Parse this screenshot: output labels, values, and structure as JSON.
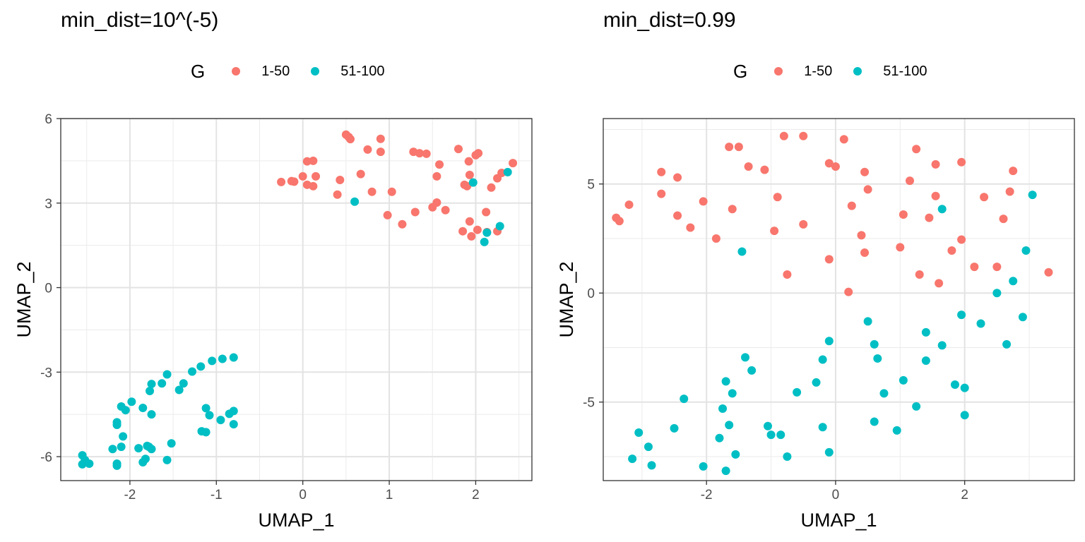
{
  "chart_data": [
    {
      "type": "scatter",
      "title": "min_dist=10^(-5)",
      "xlabel": "UMAP_1",
      "ylabel": "UMAP_2",
      "xlim": [
        -2.8,
        2.65
      ],
      "ylim": [
        -6.85,
        6.0
      ],
      "xticks": [
        -2,
        -1,
        0,
        1,
        2
      ],
      "yticks": [
        -6,
        -3,
        0,
        3,
        6
      ],
      "xtick_labels": [
        "-2",
        "-1",
        "0",
        "1",
        "2"
      ],
      "ytick_labels": [
        "-6",
        "-3",
        "0",
        "3",
        "6"
      ],
      "grid": true,
      "legend": {
        "title": "G",
        "position": "top"
      },
      "series": [
        {
          "name": "1-50",
          "color": "#F8766D",
          "points": [
            [
              -0.25,
              3.75
            ],
            [
              -0.13,
              3.78
            ],
            [
              -0.1,
              3.76
            ],
            [
              0.0,
              3.95
            ],
            [
              0.05,
              4.48
            ],
            [
              0.05,
              3.65
            ],
            [
              0.12,
              4.5
            ],
            [
              0.12,
              3.6
            ],
            [
              0.15,
              3.95
            ],
            [
              0.4,
              3.3
            ],
            [
              0.43,
              3.82
            ],
            [
              0.5,
              5.43
            ],
            [
              0.53,
              5.35
            ],
            [
              0.55,
              5.27
            ],
            [
              0.67,
              4.03
            ],
            [
              0.75,
              4.9
            ],
            [
              0.8,
              3.4
            ],
            [
              0.9,
              5.28
            ],
            [
              0.9,
              4.82
            ],
            [
              0.98,
              2.57
            ],
            [
              1.03,
              3.4
            ],
            [
              1.15,
              2.25
            ],
            [
              1.28,
              4.82
            ],
            [
              1.3,
              2.68
            ],
            [
              1.35,
              4.77
            ],
            [
              1.43,
              4.75
            ],
            [
              1.5,
              2.85
            ],
            [
              1.55,
              3.02
            ],
            [
              1.55,
              3.95
            ],
            [
              1.58,
              4.37
            ],
            [
              1.65,
              2.75
            ],
            [
              1.8,
              4.92
            ],
            [
              1.85,
              2.0
            ],
            [
              1.87,
              3.65
            ],
            [
              1.9,
              3.6
            ],
            [
              1.92,
              4.48
            ],
            [
              1.93,
              4.0
            ],
            [
              1.93,
              2.35
            ],
            [
              1.95,
              1.82
            ],
            [
              2.0,
              4.7
            ],
            [
              2.02,
              2.05
            ],
            [
              2.03,
              4.77
            ],
            [
              2.12,
              2.68
            ],
            [
              2.13,
              1.97
            ],
            [
              2.18,
              3.55
            ],
            [
              2.25,
              3.88
            ],
            [
              2.25,
              2.0
            ],
            [
              2.3,
              4.07
            ],
            [
              2.43,
              4.42
            ]
          ]
        },
        {
          "name": "51-100",
          "color": "#00BFC4",
          "points": [
            [
              0.6,
              3.05
            ],
            [
              1.97,
              3.73
            ],
            [
              2.1,
              1.62
            ],
            [
              2.13,
              1.95
            ],
            [
              2.28,
              2.18
            ],
            [
              2.37,
              4.1
            ],
            [
              -0.8,
              -2.48
            ],
            [
              -0.93,
              -2.53
            ],
            [
              -1.05,
              -2.6
            ],
            [
              -1.18,
              -2.8
            ],
            [
              -1.28,
              -2.98
            ],
            [
              -1.38,
              -3.4
            ],
            [
              -1.43,
              -3.63
            ],
            [
              -1.57,
              -3.08
            ],
            [
              -1.63,
              -3.4
            ],
            [
              -1.75,
              -3.42
            ],
            [
              -1.77,
              -3.67
            ],
            [
              -1.75,
              -4.5
            ],
            [
              -1.85,
              -4.27
            ],
            [
              -1.98,
              -4.05
            ],
            [
              -2.05,
              -4.35
            ],
            [
              -2.1,
              -4.22
            ],
            [
              -2.15,
              -4.78
            ],
            [
              -2.15,
              -4.87
            ],
            [
              -2.08,
              -5.28
            ],
            [
              -2.1,
              -5.65
            ],
            [
              -2.2,
              -5.73
            ],
            [
              -1.9,
              -5.7
            ],
            [
              -1.8,
              -5.62
            ],
            [
              -1.78,
              -5.65
            ],
            [
              -1.75,
              -5.73
            ],
            [
              -1.82,
              -6.08
            ],
            [
              -1.85,
              -6.2
            ],
            [
              -2.15,
              -6.25
            ],
            [
              -2.15,
              -6.32
            ],
            [
              -1.57,
              -6.12
            ],
            [
              -1.52,
              -5.53
            ],
            [
              -1.12,
              -4.28
            ],
            [
              -1.08,
              -4.53
            ],
            [
              -1.17,
              -5.1
            ],
            [
              -1.12,
              -5.13
            ],
            [
              -0.95,
              -4.7
            ],
            [
              -0.85,
              -4.48
            ],
            [
              -0.8,
              -4.38
            ],
            [
              -0.8,
              -4.85
            ],
            [
              -2.55,
              -5.95
            ],
            [
              -2.52,
              -6.12
            ],
            [
              -2.55,
              -6.27
            ],
            [
              -2.47,
              -6.25
            ]
          ]
        }
      ]
    },
    {
      "type": "scatter",
      "title": "min_dist=0.99",
      "xlabel": "UMAP_1",
      "ylabel": "UMAP_2",
      "xlim": [
        -3.6,
        3.7
      ],
      "ylim": [
        -8.6,
        8.0
      ],
      "xticks": [
        -2,
        0,
        2
      ],
      "yticks": [
        -5,
        0,
        5
      ],
      "xtick_labels": [
        "-2",
        "0",
        "2"
      ],
      "ytick_labels": [
        "-5",
        "0",
        "5"
      ],
      "grid": true,
      "legend": {
        "title": "G",
        "position": "top"
      },
      "series": [
        {
          "name": "1-50",
          "color": "#F8766D",
          "points": [
            [
              -3.4,
              3.45
            ],
            [
              -3.35,
              3.3
            ],
            [
              -3.2,
              4.05
            ],
            [
              -2.7,
              5.55
            ],
            [
              -2.7,
              4.55
            ],
            [
              -2.45,
              5.3
            ],
            [
              -2.45,
              3.55
            ],
            [
              -2.25,
              3.0
            ],
            [
              -2.05,
              4.2
            ],
            [
              -1.85,
              2.5
            ],
            [
              -1.65,
              6.7
            ],
            [
              -1.5,
              6.7
            ],
            [
              -1.6,
              3.85
            ],
            [
              -1.35,
              5.8
            ],
            [
              -1.1,
              5.65
            ],
            [
              -0.95,
              2.85
            ],
            [
              -0.9,
              4.4
            ],
            [
              -0.8,
              7.2
            ],
            [
              -0.75,
              0.85
            ],
            [
              -0.5,
              7.2
            ],
            [
              -0.5,
              3.15
            ],
            [
              -0.1,
              5.95
            ],
            [
              -0.1,
              1.55
            ],
            [
              0.0,
              5.8
            ],
            [
              0.13,
              7.05
            ],
            [
              0.2,
              0.05
            ],
            [
              0.25,
              4.0
            ],
            [
              0.4,
              2.65
            ],
            [
              0.45,
              5.55
            ],
            [
              0.45,
              1.85
            ],
            [
              0.5,
              4.75
            ],
            [
              1.0,
              2.1
            ],
            [
              1.05,
              3.6
            ],
            [
              1.15,
              5.15
            ],
            [
              1.25,
              6.6
            ],
            [
              1.3,
              0.85
            ],
            [
              1.45,
              3.45
            ],
            [
              1.55,
              4.45
            ],
            [
              1.55,
              5.9
            ],
            [
              1.6,
              0.45
            ],
            [
              1.8,
              1.95
            ],
            [
              1.95,
              6.0
            ],
            [
              1.95,
              2.45
            ],
            [
              2.15,
              1.2
            ],
            [
              2.3,
              4.4
            ],
            [
              2.5,
              1.2
            ],
            [
              2.6,
              3.4
            ],
            [
              2.7,
              4.65
            ],
            [
              2.75,
              5.6
            ],
            [
              3.3,
              0.95
            ]
          ]
        },
        {
          "name": "51-100",
          "color": "#00BFC4",
          "points": [
            [
              -1.45,
              1.9
            ],
            [
              1.65,
              3.85
            ],
            [
              3.05,
              4.5
            ],
            [
              2.95,
              1.95
            ],
            [
              2.75,
              0.55
            ],
            [
              2.5,
              0.0
            ],
            [
              2.9,
              -1.1
            ],
            [
              2.25,
              -1.4
            ],
            [
              1.95,
              -1.0
            ],
            [
              1.4,
              -1.8
            ],
            [
              1.65,
              -2.4
            ],
            [
              1.4,
              -3.1
            ],
            [
              1.05,
              -4.0
            ],
            [
              1.25,
              -5.2
            ],
            [
              0.95,
              -6.3
            ],
            [
              0.6,
              -5.9
            ],
            [
              0.75,
              -4.6
            ],
            [
              0.65,
              -3.0
            ],
            [
              0.6,
              -2.35
            ],
            [
              0.5,
              -1.3
            ],
            [
              -0.1,
              -2.2
            ],
            [
              -0.2,
              -3.05
            ],
            [
              -0.3,
              -4.1
            ],
            [
              -0.6,
              -4.55
            ],
            [
              -0.2,
              -6.15
            ],
            [
              -0.1,
              -7.3
            ],
            [
              -0.75,
              -7.5
            ],
            [
              -0.85,
              -6.5
            ],
            [
              -1.0,
              -6.5
            ],
            [
              -1.05,
              -6.1
            ],
            [
              -1.4,
              -2.95
            ],
            [
              -1.3,
              -3.55
            ],
            [
              -1.7,
              -4.05
            ],
            [
              -1.6,
              -4.6
            ],
            [
              -1.75,
              -5.3
            ],
            [
              -1.65,
              -6.05
            ],
            [
              -1.8,
              -6.65
            ],
            [
              -1.55,
              -7.4
            ],
            [
              -1.7,
              -8.15
            ],
            [
              -2.05,
              -7.95
            ],
            [
              -2.35,
              -4.85
            ],
            [
              -2.5,
              -6.2
            ],
            [
              -3.05,
              -6.4
            ],
            [
              -2.9,
              -7.05
            ],
            [
              -3.15,
              -7.6
            ],
            [
              -2.85,
              -7.9
            ],
            [
              2.0,
              -4.35
            ],
            [
              1.85,
              -4.2
            ],
            [
              2.0,
              -5.6
            ],
            [
              2.65,
              -2.35
            ]
          ]
        }
      ]
    }
  ]
}
